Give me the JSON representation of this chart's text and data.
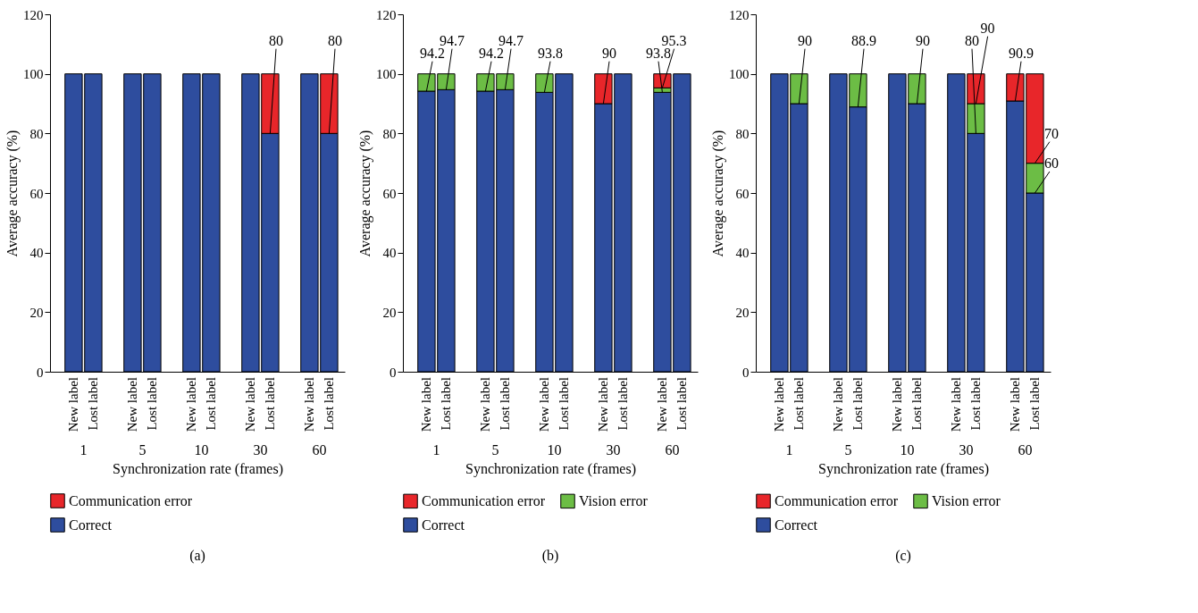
{
  "chart_data": [
    {
      "type": "bar",
      "title": "(a)",
      "xlabel": "Synchronization rate (frames)",
      "ylabel": "Average accuracy (%)",
      "stacked": true,
      "legend": "bottom left",
      "categories": [
        "New label",
        "Lost label",
        "New label",
        "Lost label",
        "New label",
        "Lost label",
        "New label",
        "Lost label",
        "New label",
        "Lost label"
      ],
      "series": [
        {
          "name": "Correct",
          "color": "#2e4d9e",
          "values": [
            100,
            100,
            100,
            100,
            100,
            100,
            100,
            80,
            100,
            80
          ],
          "value_labels": [
            null,
            null,
            null,
            null,
            null,
            null,
            null,
            "80",
            null,
            "80"
          ]
        },
        {
          "name": "Communication error",
          "color": "#e8262a",
          "values": [
            null,
            null,
            null,
            null,
            null,
            null,
            null,
            20,
            null,
            20
          ]
        }
      ],
      "ylim": [
        0,
        120
      ],
      "yticks": [
        0,
        20,
        40,
        60,
        80,
        100,
        120
      ],
      "annotations": [
        "1",
        "5",
        "10",
        "30",
        "60"
      ]
    },
    {
      "type": "bar",
      "title": "(b)",
      "xlabel": "Synchronization rate (frames)",
      "ylabel": "Average accuracy (%)",
      "stacked": true,
      "legend": "bottom left",
      "categories": [
        "New label",
        "Lost label",
        "New label",
        "Lost label",
        "New label",
        "Lost label",
        "New label",
        "Lost label",
        "New label",
        "Lost label"
      ],
      "series": [
        {
          "name": "Correct",
          "color": "#2e4d9e",
          "values": [
            94.2,
            94.7,
            94.2,
            94.7,
            93.8,
            100,
            90,
            100,
            93.8,
            100
          ],
          "value_labels": [
            "94.2",
            "94.7",
            "94.2",
            "94.7",
            "93.8",
            null,
            "90",
            null,
            "93.8",
            null
          ]
        },
        {
          "name": "Vision error",
          "color": "#6cbd45",
          "values": [
            5.8,
            5.3,
            5.8,
            5.3,
            6.2,
            null,
            null,
            null,
            1.5,
            null
          ]
        },
        {
          "name": "Communication error",
          "color": "#e8262a",
          "values": [
            null,
            null,
            null,
            null,
            null,
            null,
            10,
            null,
            4.7,
            null
          ]
        }
      ],
      "ylim": [
        0,
        120
      ],
      "yticks": [
        0,
        20,
        40,
        60,
        80,
        100,
        120
      ],
      "annotations": [
        "1",
        "5",
        "10",
        "30",
        "60",
        {
          "text": "95.3",
          "y": 95.3
        }
      ]
    },
    {
      "type": "bar",
      "title": "(c)",
      "xlabel": "Synchronization rate (frames)",
      "ylabel": "Average accuracy (%)",
      "stacked": true,
      "legend": "bottom left",
      "categories": [
        "New label",
        "Lost label",
        "New label",
        "Lost label",
        "New label",
        "Lost label",
        "New label",
        "Lost label",
        "New label",
        "Lost label"
      ],
      "series": [
        {
          "name": "Correct",
          "color": "#2e4d9e",
          "values": [
            100,
            90,
            100,
            88.9,
            100,
            90,
            100,
            80,
            90.9,
            60
          ],
          "value_labels": [
            null,
            "90",
            null,
            "88.9",
            null,
            "90",
            null,
            "80",
            "90.9",
            "60"
          ]
        },
        {
          "name": "Vision error",
          "color": "#6cbd45",
          "values": [
            null,
            10,
            null,
            11.1,
            null,
            10,
            null,
            10,
            null,
            10
          ]
        },
        {
          "name": "Communication error",
          "color": "#e8262a",
          "values": [
            null,
            null,
            null,
            null,
            null,
            null,
            null,
            10,
            9.1,
            30
          ]
        }
      ],
      "ylim": [
        0,
        120
      ],
      "yticks": [
        0,
        20,
        40,
        60,
        80,
        100,
        120
      ],
      "annotations": [
        "1",
        "5",
        "10",
        "30",
        "60",
        {
          "text": "90"
        },
        {
          "text": "70"
        }
      ]
    }
  ]
}
